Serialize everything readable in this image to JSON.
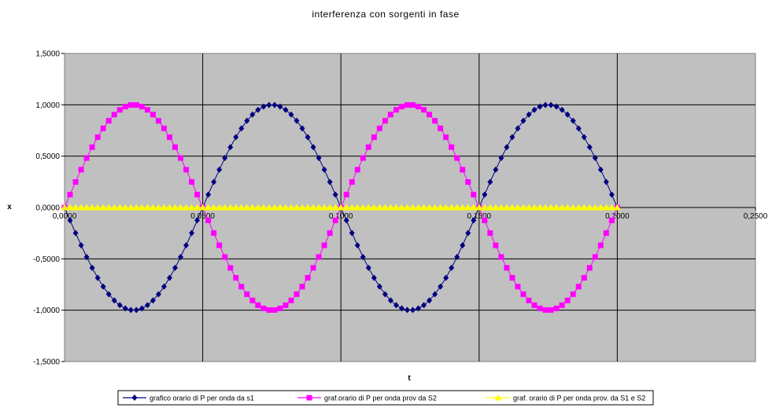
{
  "chart_data": {
    "type": "line",
    "title": "interferenza con sorgenti in fase",
    "xlabel": "t",
    "ylabel": "x",
    "xlim": [
      0,
      0.25
    ],
    "ylim": [
      -1.5,
      1.5
    ],
    "x_ticks": [
      "0,0000",
      "0,0500",
      "0,1000",
      "0,1500",
      "0,2000",
      "0,2500"
    ],
    "y_ticks": [
      "1,5000",
      "1,0000",
      "0,5000",
      "0,0000",
      "-0,5000",
      "-1,0000",
      "-1,5000"
    ],
    "grid": true,
    "legend_position": "bottom",
    "plot_background": "#c0c0c0",
    "x_range_sampled": [
      0,
      0.2
    ],
    "samples": 101,
    "series": [
      {
        "name": "grafico orario di P per onda da s1",
        "color": "#000080",
        "marker": "diamond",
        "function": "x = -sin(2*pi*t/0.1)",
        "amplitude": 1.0,
        "period": 0.1
      },
      {
        "name": "graf.orario di P per onda prov da S2",
        "color": "#ff00ff",
        "marker": "square",
        "function": "x = sin(2*pi*t/0.1)",
        "amplitude": 1.0,
        "period": 0.1
      },
      {
        "name": "graf. orario di P per onda prov. da S1 e S2",
        "color": "#ffff00",
        "marker": "triangle",
        "function": "x = s1 + s2",
        "amplitude": 0.0,
        "period": 0.1
      }
    ]
  }
}
